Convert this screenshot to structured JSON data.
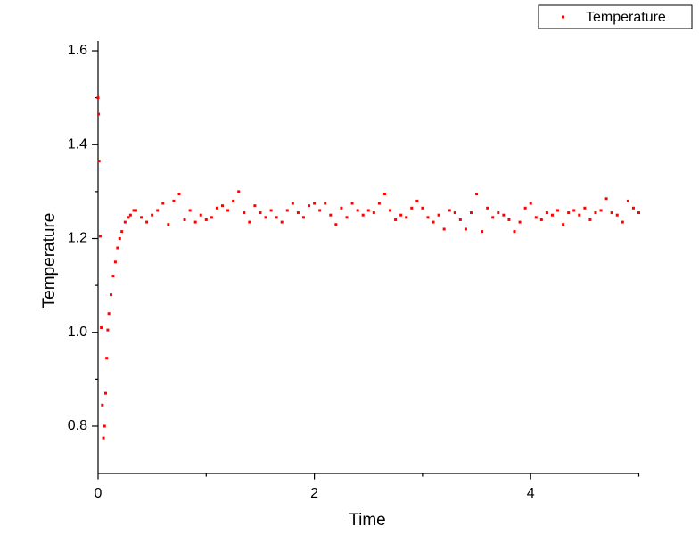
{
  "chart_data": {
    "type": "scatter",
    "xlabel": "Time",
    "ylabel": "Temperature",
    "xlim": [
      0,
      5
    ],
    "ylim": [
      0.7,
      1.62
    ],
    "xticks": [
      0,
      2,
      4
    ],
    "xminorticks": [
      1,
      3,
      5
    ],
    "yticks": [
      0.8,
      {
        "value": 1,
        "label": "1.0"
      },
      1.2,
      1.4,
      1.6
    ],
    "yminorticks": [
      0.9,
      1.1,
      1.3,
      1.5
    ],
    "legend": "top-right",
    "series": [
      {
        "name": "Temperature",
        "color": "#ff0000",
        "x": [
          0,
          0.005,
          0.01,
          0.02,
          0.03,
          0.04,
          0.05,
          0.06,
          0.07,
          0.08,
          0.09,
          0.1,
          0.12,
          0.14,
          0.16,
          0.18,
          0.2,
          0.22,
          0.25,
          0.28,
          0.3,
          0.33,
          0.35,
          0.4,
          0.45,
          0.5,
          0.55,
          0.6,
          0.65,
          0.7,
          0.75,
          0.8,
          0.85,
          0.9,
          0.95,
          1.0,
          1.05,
          1.1,
          1.15,
          1.2,
          1.25,
          1.3,
          1.35,
          1.4,
          1.45,
          1.5,
          1.55,
          1.6,
          1.65,
          1.7,
          1.75,
          1.8,
          1.85,
          1.9,
          1.95,
          2.0,
          2.05,
          2.1,
          2.15,
          2.2,
          2.25,
          2.3,
          2.35,
          2.4,
          2.45,
          2.5,
          2.55,
          2.6,
          2.65,
          2.7,
          2.75,
          2.8,
          2.85,
          2.9,
          2.95,
          3.0,
          3.05,
          3.1,
          3.15,
          3.2,
          3.25,
          3.3,
          3.35,
          3.4,
          3.45,
          3.5,
          3.55,
          3.6,
          3.65,
          3.7,
          3.75,
          3.8,
          3.85,
          3.9,
          3.95,
          4.0,
          4.05,
          4.1,
          4.15,
          4.2,
          4.25,
          4.3,
          4.35,
          4.4,
          4.45,
          4.5,
          4.55,
          4.6,
          4.65,
          4.7,
          4.75,
          4.8,
          4.85,
          4.9,
          4.95,
          5.0
        ],
        "values": [
          1.5,
          1.465,
          1.365,
          1.205,
          1.01,
          0.845,
          0.775,
          0.8,
          0.87,
          0.945,
          1.005,
          1.04,
          1.08,
          1.12,
          1.15,
          1.18,
          1.2,
          1.215,
          1.235,
          1.245,
          1.25,
          1.26,
          1.26,
          1.245,
          1.235,
          1.25,
          1.26,
          1.275,
          1.23,
          1.28,
          1.295,
          1.24,
          1.26,
          1.235,
          1.25,
          1.24,
          1.245,
          1.265,
          1.27,
          1.26,
          1.28,
          1.3,
          1.255,
          1.235,
          1.27,
          1.255,
          1.245,
          1.26,
          1.245,
          1.235,
          1.26,
          1.275,
          1.255,
          1.245,
          1.27,
          1.275,
          1.26,
          1.275,
          1.25,
          1.23,
          1.265,
          1.245,
          1.275,
          1.26,
          1.25,
          1.26,
          1.255,
          1.275,
          1.295,
          1.26,
          1.24,
          1.25,
          1.245,
          1.265,
          1.28,
          1.265,
          1.245,
          1.235,
          1.25,
          1.22,
          1.26,
          1.255,
          1.24,
          1.22,
          1.255,
          1.295,
          1.215,
          1.265,
          1.245,
          1.255,
          1.25,
          1.24,
          1.215,
          1.235,
          1.265,
          1.275,
          1.245,
          1.24,
          1.255,
          1.25,
          1.26,
          1.23,
          1.255,
          1.26,
          1.25,
          1.265,
          1.24,
          1.255,
          1.26,
          1.285,
          1.255,
          1.25,
          1.235,
          1.28,
          1.265,
          1.255
        ]
      }
    ]
  }
}
